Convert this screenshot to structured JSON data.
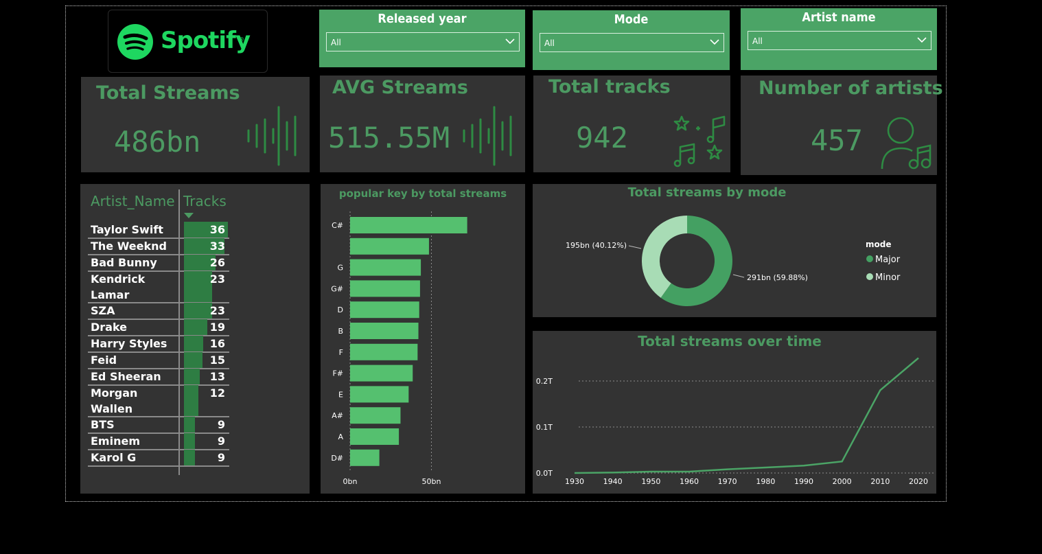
{
  "logo": {
    "text": "Spotify",
    "tm": "®"
  },
  "filters": [
    {
      "title": "Released year",
      "value": "All"
    },
    {
      "title": "Mode",
      "value": "All"
    },
    {
      "title": "Artist name",
      "value": "All"
    }
  ],
  "kpis": {
    "total_streams": {
      "title": "Total Streams",
      "value": "486bn",
      "icon": "sound-wave-icon"
    },
    "avg_streams": {
      "title": "AVG Streams",
      "value": "515.55M",
      "icon": "sound-wave-icon"
    },
    "total_tracks": {
      "title": "Total tracks",
      "value": "942",
      "icon": "music-notes-stars-icon"
    },
    "num_artists": {
      "title": "Number of artists",
      "value": "457",
      "icon": "artist-music-icon"
    }
  },
  "artist_table": {
    "columns": [
      "Artist_Name",
      "Tracks"
    ],
    "rows": [
      {
        "name": "Taylor Swift",
        "tracks": 36
      },
      {
        "name": "The Weeknd",
        "tracks": 33
      },
      {
        "name": "Bad Bunny",
        "tracks": 26
      },
      {
        "name": "Kendrick Lamar",
        "tracks": 23
      },
      {
        "name": "SZA",
        "tracks": 23
      },
      {
        "name": "Drake",
        "tracks": 19
      },
      {
        "name": "Harry Styles",
        "tracks": 16
      },
      {
        "name": "Feid",
        "tracks": 15
      },
      {
        "name": "Ed Sheeran",
        "tracks": 13
      },
      {
        "name": "Morgan Wallen",
        "tracks": 12
      },
      {
        "name": "BTS",
        "tracks": 9
      },
      {
        "name": "Eminem",
        "tracks": 9
      },
      {
        "name": "Karol G",
        "tracks": 9
      }
    ]
  },
  "chart_data": [
    {
      "type": "bar",
      "orientation": "horizontal",
      "title": "popular key by total streams",
      "categories": [
        "C#",
        "",
        "G",
        "G#",
        "D",
        "B",
        "F",
        "F#",
        "E",
        "A#",
        "A",
        "D#"
      ],
      "values": [
        72,
        48.5,
        43.5,
        43,
        42.5,
        42,
        41.5,
        38.5,
        36,
        31,
        30,
        18
      ],
      "xticks": [
        "0bn",
        "50bn"
      ],
      "xlim": [
        0,
        100
      ],
      "color": "#55c06f"
    },
    {
      "type": "pie",
      "title": "Total streams by mode",
      "legend_title": "mode",
      "slices": [
        {
          "name": "Major",
          "value": 291,
          "label": "291bn (59.88%)",
          "color": "#44a062"
        },
        {
          "name": "Minor",
          "value": 195,
          "label": "195bn (40.12%)",
          "color": "#a8dcb5"
        }
      ]
    },
    {
      "type": "line",
      "title": "Total streams over time",
      "x": [
        1930,
        1940,
        1950,
        1960,
        1970,
        1980,
        1990,
        2000,
        2010,
        2020
      ],
      "y": [
        0.0,
        0.001,
        0.003,
        0.003,
        0.008,
        0.012,
        0.016,
        0.025,
        0.18,
        0.25
      ],
      "yticks": [
        "0.0T",
        "0.1T",
        "0.2T"
      ],
      "ylim": [
        0,
        0.25
      ],
      "color": "#4ba466"
    }
  ]
}
